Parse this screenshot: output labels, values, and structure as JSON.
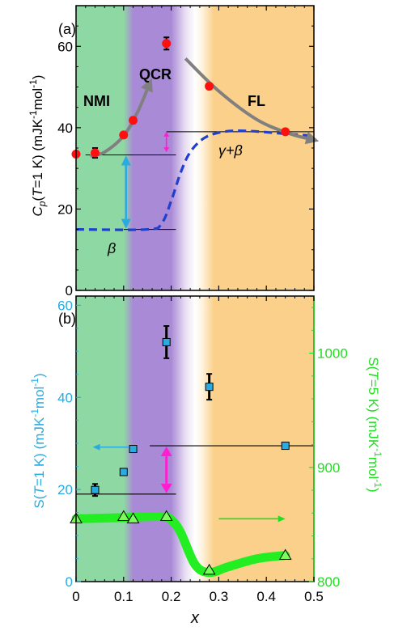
{
  "chart_data": [
    {
      "type": "scatter",
      "panel_label": "(a)",
      "xlim": [
        0,
        0.5
      ],
      "ylim": [
        0,
        70
      ],
      "y_ticks": [
        "0",
        "20",
        "40",
        "60"
      ],
      "ylabel_parts": {
        "c": "C",
        "p": "p",
        "mid": "(",
        "t": "T",
        "rest": "=1 K) (mJK",
        "e1": "-1",
        "mol": "mol",
        "e2": "-1",
        "close": ")"
      },
      "regions": [
        {
          "name": "NMI",
          "from": 0,
          "to": 0.1,
          "color": "#8ed9a3"
        },
        {
          "name": "QCR",
          "from": 0.13,
          "to": 0.2,
          "color": "#a98ad6"
        },
        {
          "name": "FL",
          "from": 0.28,
          "to": 0.5,
          "color": "#fad08a"
        }
      ],
      "region_labels": {
        "nmi": "NMI",
        "qcr": "QCR",
        "fl": "FL"
      },
      "series": [
        {
          "marker": "red-circle",
          "x": [
            0.0,
            0.04,
            0.1,
            0.12,
            0.19,
            0.28,
            0.44
          ],
          "y": [
            33.5,
            33.8,
            38.2,
            41.8,
            60.7,
            50.2,
            39.0
          ],
          "yerr": [
            0.5,
            1.2,
            0.6,
            0.6,
            1.5,
            0.5,
            0.5
          ]
        },
        {
          "line": "gray-guide",
          "x": [
            0.03,
            0.06,
            0.1,
            0.13,
            0.155
          ],
          "y": [
            33.0,
            34.0,
            38.0,
            44.0,
            51.0
          ]
        },
        {
          "line": "gray-guide",
          "x": [
            0.23,
            0.3,
            0.38,
            0.45,
            0.5
          ],
          "y": [
            57.0,
            49.0,
            42.0,
            38.5,
            37.0
          ]
        },
        {
          "line": "blue-dashed",
          "x": [
            0.0,
            0.15,
            0.18,
            0.2,
            0.22,
            0.24,
            0.27,
            0.31,
            0.36,
            0.44,
            0.5
          ],
          "y": [
            15.0,
            15.0,
            16.5,
            22.0,
            29.0,
            34.0,
            37.5,
            39.0,
            39.2,
            38.5,
            38.0
          ]
        }
      ],
      "annotations": {
        "beta": "β",
        "gamma_beta": "γ+β",
        "levels": [
          33.3,
          15.0,
          39.0
        ]
      }
    },
    {
      "type": "scatter",
      "panel_label": "(b)",
      "xlabel": "x",
      "xlim": [
        0,
        0.5
      ],
      "x_ticks": [
        "0",
        "0.1",
        "0.2",
        "0.3",
        "0.4",
        "0.5"
      ],
      "ylim_left": [
        0,
        62
      ],
      "y_ticks_left": [
        "0",
        "20",
        "40",
        "60"
      ],
      "ylim_right": [
        800,
        1050
      ],
      "y_ticks_right": [
        "800",
        "900",
        "1000"
      ],
      "ylabel_left_parts": {
        "s": "S(",
        "t": "T",
        "rest": "=1 K) (mJK",
        "e1": "-1",
        "mol": "mol",
        "e2": "-1",
        "close": ")"
      },
      "ylabel_right_parts": {
        "s": "S(",
        "t": "T",
        "rest": "=5 K) (mJK",
        "e1": "-1",
        "mol": "mol",
        "e2": "-1",
        "close": ")"
      },
      "colors": {
        "left_axis": "#29abe2",
        "right_axis": "#22dd22",
        "left_marker": "#29abe2",
        "right_marker": "#7cfc5a"
      },
      "series": [
        {
          "marker": "blue-square",
          "axis": "left",
          "x": [
            0.04,
            0.1,
            0.12,
            0.19,
            0.28,
            0.44
          ],
          "y": [
            19.9,
            23.8,
            28.8,
            52.0,
            42.3,
            29.5
          ],
          "yerr": [
            1.3,
            0,
            0,
            3.5,
            2.8,
            0
          ]
        },
        {
          "marker": "green-triangle",
          "axis": "right",
          "x": [
            0.0,
            0.1,
            0.12,
            0.19,
            0.28,
            0.44
          ],
          "y": [
            855.0,
            857.0,
            855.0,
            857.0,
            810.0,
            823.0
          ],
          "yerr": [
            0,
            0,
            0,
            3,
            3,
            0
          ]
        },
        {
          "line": "green-thick",
          "axis": "right",
          "x": [
            0.0,
            0.1,
            0.18,
            0.2,
            0.22,
            0.25,
            0.28,
            0.32,
            0.38,
            0.44
          ],
          "y": [
            855.0,
            856.0,
            857.0,
            854.0,
            843.0,
            815.0,
            808.0,
            813.0,
            820.0,
            823.0
          ]
        }
      ],
      "annotations": {
        "levels_left": [
          19.0,
          29.5
        ]
      }
    }
  ]
}
